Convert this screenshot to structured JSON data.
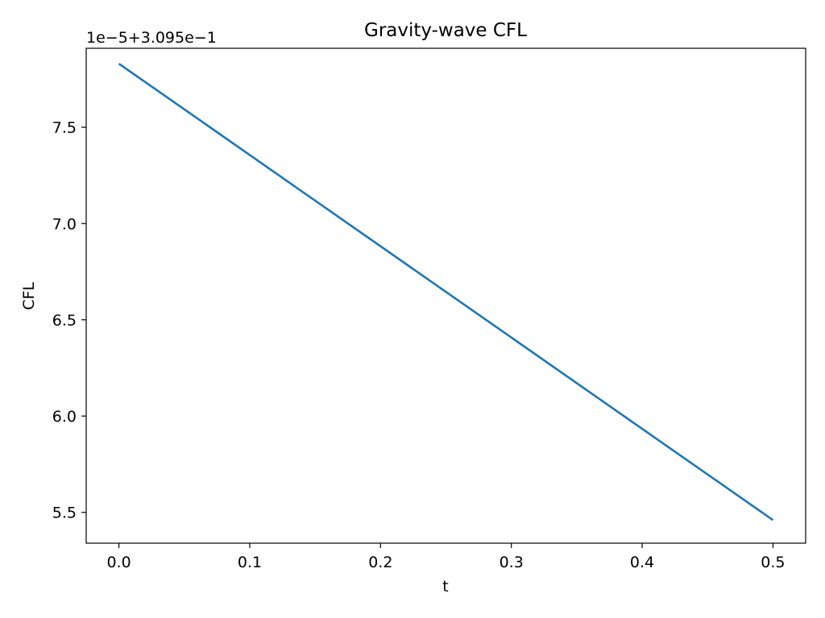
{
  "colors": {
    "series": "#1f77b4",
    "axes": "#000000",
    "background": "#ffffff"
  },
  "chart_data": {
    "type": "line",
    "title": "Gravity-wave CFL",
    "xlabel": "t",
    "ylabel": "CFL",
    "offset_text": "1e−5+3.095e−1",
    "xlim": [
      -0.025,
      0.525
    ],
    "ylim": [
      5.34,
      7.91
    ],
    "x_ticks": [
      0.0,
      0.1,
      0.2,
      0.3,
      0.4,
      0.5
    ],
    "x_tick_labels": [
      "0.0",
      "0.1",
      "0.2",
      "0.3",
      "0.4",
      "0.5"
    ],
    "y_ticks": [
      5.5,
      6.0,
      6.5,
      7.0,
      7.5
    ],
    "y_tick_labels": [
      "5.5",
      "6.0",
      "6.5",
      "7.0",
      "7.5"
    ],
    "grid": false,
    "legend": "none",
    "series": [
      {
        "x": [
          0.0,
          0.5
        ],
        "y": [
          7.83,
          5.46
        ]
      }
    ]
  }
}
